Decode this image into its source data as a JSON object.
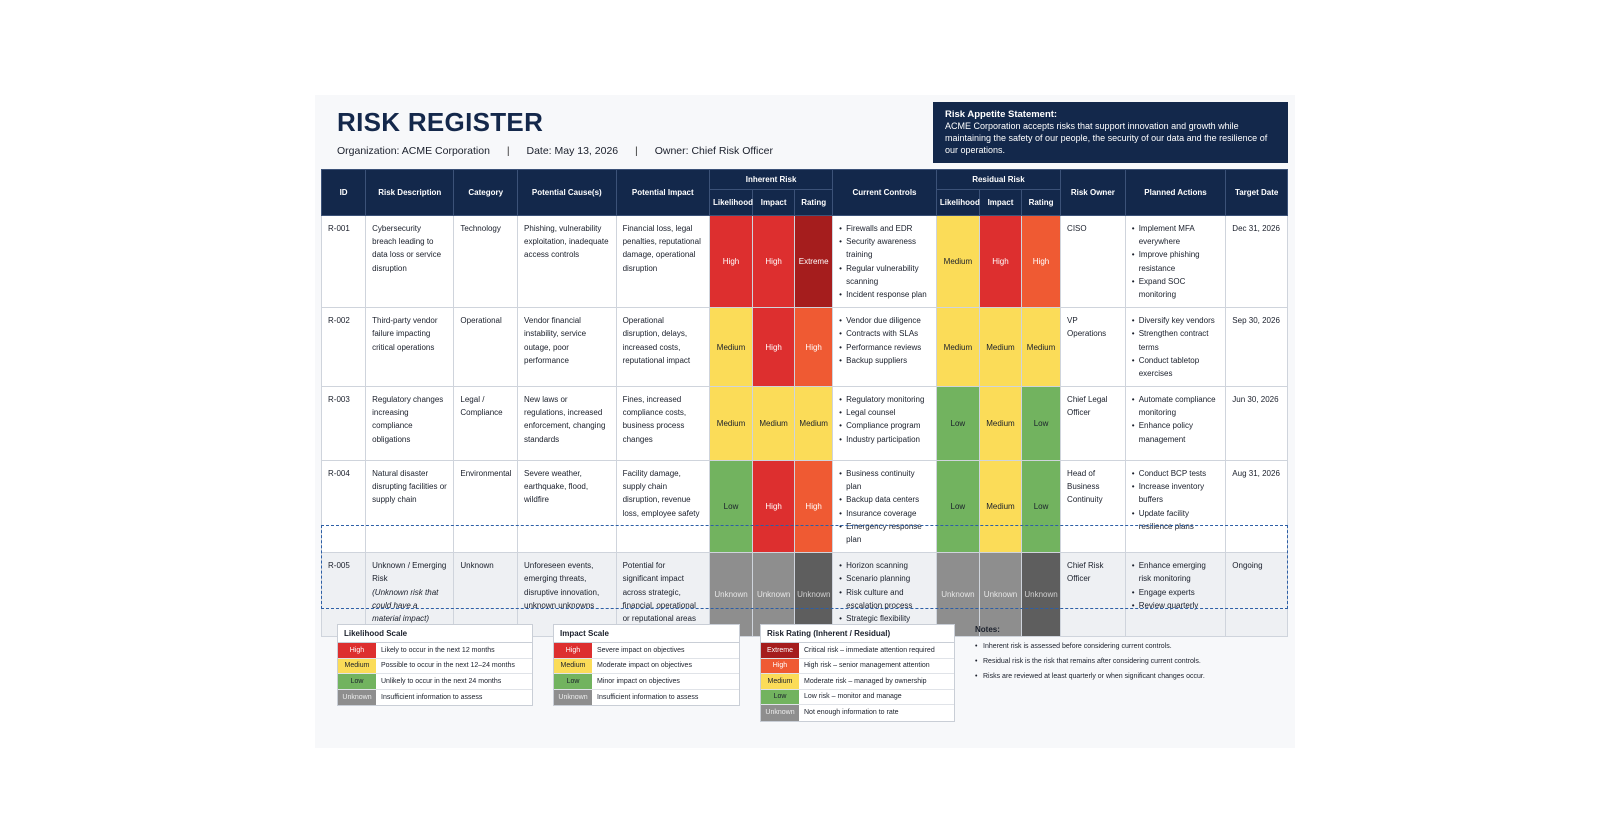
{
  "title": "RISK REGISTER",
  "meta": {
    "organization": "Organization: ACME Corporation",
    "date": "Date: May 13, 2026",
    "owner": "Owner: Chief Risk Officer",
    "separator": "|"
  },
  "appetite": {
    "heading": "Risk Appetite Statement:",
    "text": "ACME Corporation accepts risks that support innovation and growth while maintaining the safety of our people, the security of our data and the resilience of our operations."
  },
  "headers": {
    "id": "ID",
    "description": "Risk Description",
    "category": "Category",
    "causes": "Potential Cause(s)",
    "impact": "Potential Impact",
    "inherent": "Inherent Risk",
    "controls": "Current Controls",
    "residual": "Residual Risk",
    "owner": "Risk Owner",
    "actions": "Planned Actions",
    "target": "Target Date",
    "likelihood": "Likelihood",
    "impact_sub": "Impact",
    "rating": "Rating"
  },
  "rows": [
    {
      "id": "R-001",
      "description": "Cybersecurity breach leading to data loss or service disruption",
      "note": "",
      "category": "Technology",
      "causes": "Phishing, vulnerability exploitation, inadequate access controls",
      "impact": "Financial loss, legal penalties, reputational damage, operational disruption",
      "inherent": {
        "likelihood": "High",
        "impact": "High",
        "rating": "Extreme"
      },
      "controls": [
        "Firewalls and EDR",
        "Security awareness training",
        "Regular vulnerability scanning",
        "Incident response plan"
      ],
      "residual": {
        "likelihood": "Medium",
        "impact": "High",
        "rating": "High"
      },
      "owner": "CISO",
      "actions": [
        "Implement MFA everywhere",
        "Improve phishing resistance",
        "Expand SOC monitoring"
      ],
      "target": "Dec 31, 2026"
    },
    {
      "id": "R-002",
      "description": "Third-party vendor failure impacting critical operations",
      "note": "",
      "category": "Operational",
      "causes": "Vendor financial instability, service outage, poor performance",
      "impact": "Operational disruption, delays, increased costs, reputational impact",
      "inherent": {
        "likelihood": "Medium",
        "impact": "High",
        "rating": "High"
      },
      "controls": [
        "Vendor due diligence",
        "Contracts with SLAs",
        "Performance reviews",
        "Backup suppliers"
      ],
      "residual": {
        "likelihood": "Medium",
        "impact": "Medium",
        "rating": "Medium"
      },
      "owner": "VP Operations",
      "actions": [
        "Diversify key vendors",
        "Strengthen contract terms",
        "Conduct tabletop exercises"
      ],
      "target": "Sep 30, 2026"
    },
    {
      "id": "R-003",
      "description": "Regulatory changes increasing compliance obligations",
      "note": "",
      "category": "Legal / Compliance",
      "causes": "New laws or regulations, increased enforcement, changing standards",
      "impact": "Fines, increased compliance costs, business process changes",
      "inherent": {
        "likelihood": "Medium",
        "impact": "Medium",
        "rating": "Medium"
      },
      "controls": [
        "Regulatory monitoring",
        "Legal counsel",
        "Compliance program",
        "Industry participation"
      ],
      "residual": {
        "likelihood": "Low",
        "impact": "Medium",
        "rating": "Low"
      },
      "owner": "Chief Legal Officer",
      "actions": [
        "Automate compliance monitoring",
        "Enhance policy management"
      ],
      "target": "Jun 30, 2026"
    },
    {
      "id": "R-004",
      "description": "Natural disaster disrupting facilities or supply chain",
      "note": "",
      "category": "Environmental",
      "causes": "Severe weather, earthquake, flood, wildfire",
      "impact": "Facility damage, supply chain disruption, revenue loss, employee safety",
      "inherent": {
        "likelihood": "Low",
        "impact": "High",
        "rating": "High"
      },
      "controls": [
        "Business continuity plan",
        "Backup data centers",
        "Insurance coverage",
        "Emergency response plan"
      ],
      "residual": {
        "likelihood": "Low",
        "impact": "Medium",
        "rating": "Low"
      },
      "owner": "Head of Business Continuity",
      "actions": [
        "Conduct BCP tests",
        "Increase inventory buffers",
        "Update facility resilience plans"
      ],
      "target": "Aug 31, 2026"
    },
    {
      "id": "R-005",
      "description": "Unknown / Emerging Risk",
      "note": "(Unknown risk that could have a material impact)",
      "category": "Unknown",
      "causes": "Unforeseen events, emerging threats, disruptive innovation, unknown unknowns",
      "impact": "Potential for significant impact across strategic, financial, operational or reputational areas",
      "inherent": {
        "likelihood": "Unknown",
        "impact": "Unknown",
        "rating": "Unknown"
      },
      "controls": [
        "Horizon scanning",
        "Scenario planning",
        "Risk culture and escalation process",
        "Strategic flexibility"
      ],
      "residual": {
        "likelihood": "Unknown",
        "impact": "Unknown",
        "rating": "Unknown"
      },
      "owner": "Chief Risk Officer",
      "actions": [
        "Enhance emerging risk monitoring",
        "Engage experts",
        "Review quarterly"
      ],
      "target": "Ongoing"
    }
  ],
  "legends": {
    "likelihood": {
      "title": "Likelihood Scale",
      "items": [
        {
          "label": "High",
          "text": "Likely to occur in the next 12 months"
        },
        {
          "label": "Medium",
          "text": "Possible to occur in the next 12–24 months"
        },
        {
          "label": "Low",
          "text": "Unlikely to occur in the next 24 months"
        },
        {
          "label": "Unknown",
          "text": "Insufficient information to assess"
        }
      ]
    },
    "impact": {
      "title": "Impact Scale",
      "items": [
        {
          "label": "High",
          "text": "Severe impact on objectives"
        },
        {
          "label": "Medium",
          "text": "Moderate impact on objectives"
        },
        {
          "label": "Low",
          "text": "Minor impact on objectives"
        },
        {
          "label": "Unknown",
          "text": "Insufficient information to assess"
        }
      ]
    },
    "rating": {
      "title": "Risk Rating (Inherent / Residual)",
      "items": [
        {
          "label": "Extreme",
          "text": "Critical risk – immediate attention required"
        },
        {
          "label": "High",
          "text": "High risk – senior management attention"
        },
        {
          "label": "Medium",
          "text": "Moderate risk – managed by ownership"
        },
        {
          "label": "Low",
          "text": "Low risk – monitor and manage"
        },
        {
          "label": "Unknown",
          "text": "Not enough information to rate"
        }
      ]
    }
  },
  "notes": {
    "title": "Notes:",
    "items": [
      "Inherent risk is assessed before considering current controls.",
      "Residual risk is the risk that remains after considering current controls.",
      "Risks are reviewed at least quarterly or when significant changes occur."
    ]
  },
  "colors": {
    "extreme": "#a51d1d",
    "high": "#dd2f2f",
    "high_rating": "#ef5a33",
    "medium": "#fbdc58",
    "low": "#72b35f",
    "unknown": "#8e8e8e",
    "navy": "#13284b"
  }
}
